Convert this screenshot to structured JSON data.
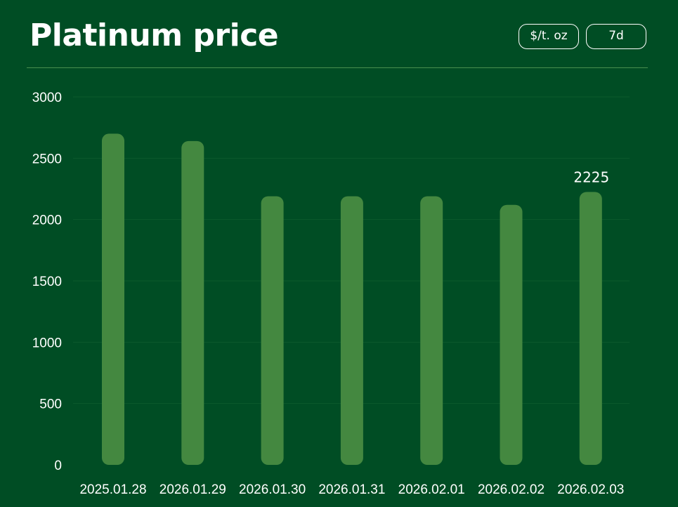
{
  "header": {
    "title": "Platinum price",
    "unit_label": "$/t. oz",
    "range_label": "7d"
  },
  "colors": {
    "background": "#004d24",
    "bar": "#448840",
    "grid": "#0b5a2c",
    "divider": "#4a8f4f",
    "text": "#ffffff"
  },
  "chart_data": {
    "type": "bar",
    "title": "Platinum price",
    "xlabel": "",
    "ylabel": "",
    "categories": [
      "2025.01.28",
      "2026.01.29",
      "2026.01.30",
      "2026.01.31",
      "2026.02.01",
      "2026.02.02",
      "2026.02.03"
    ],
    "values": [
      2700,
      2640,
      2190,
      2190,
      2190,
      2120,
      2225
    ],
    "ylim": [
      0,
      3000
    ],
    "yticks": [
      0,
      500,
      1000,
      1500,
      2000,
      2500,
      3000
    ],
    "grid": true,
    "legend": "none",
    "data_labels": [
      {
        "index": 6,
        "text": "2225"
      }
    ]
  }
}
